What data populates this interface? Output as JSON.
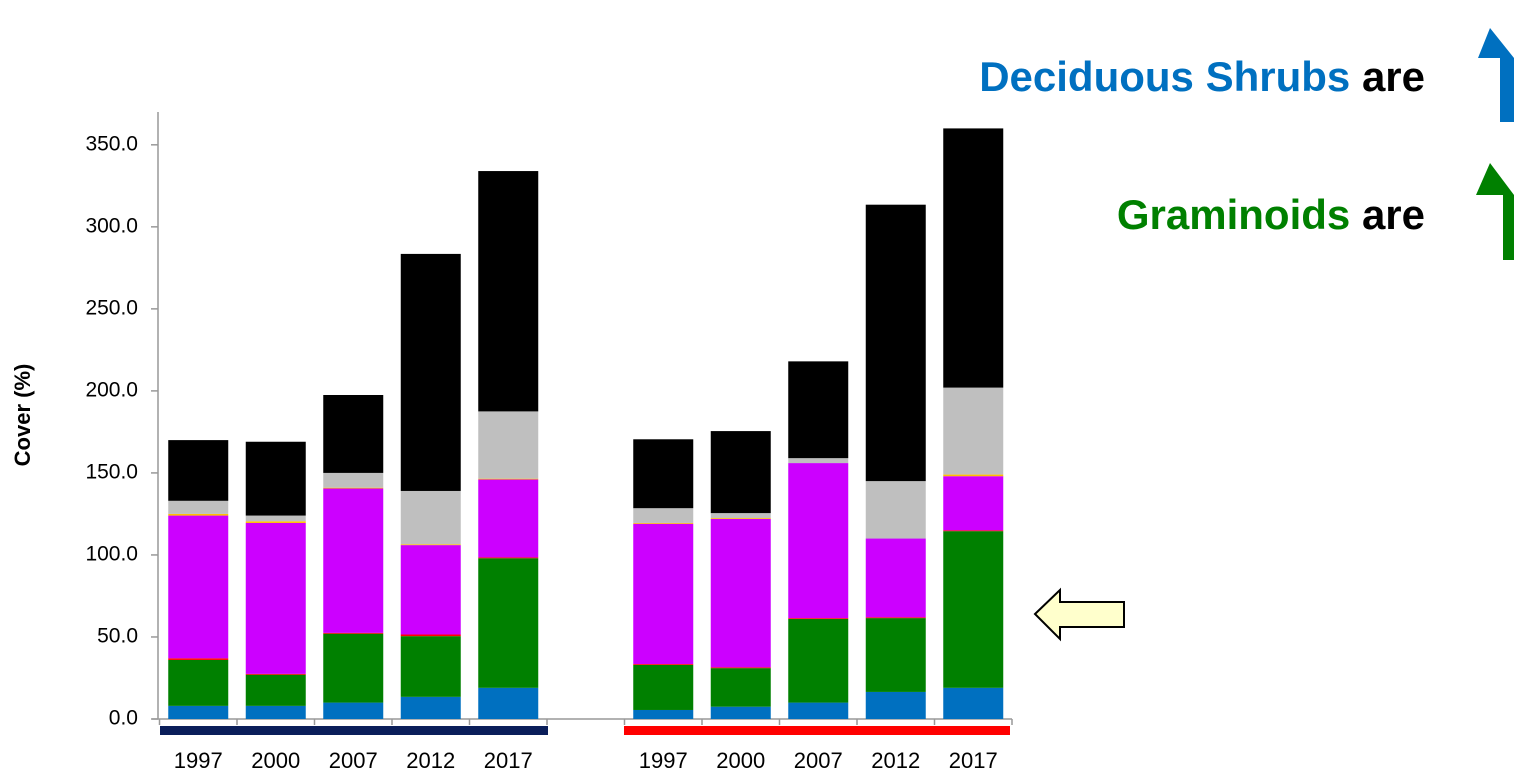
{
  "chart_data": {
    "type": "stacked_bar",
    "y_label": "Cover (%)",
    "categories": [
      "1997",
      "2000",
      "2007",
      "2012",
      "2017",
      null,
      "1997",
      "2000",
      "2007",
      "2012",
      "2017"
    ],
    "series": [
      {
        "color": "#0070c0",
        "values": [
          8,
          8,
          10,
          13.5,
          19,
          null,
          5.5,
          7.5,
          10,
          16.5,
          19
        ]
      },
      {
        "color": "#008000",
        "values": [
          28,
          19,
          42,
          37,
          79,
          null,
          27.5,
          23.5,
          51,
          45,
          95.5
        ]
      },
      {
        "color": "#ff0000",
        "values": [
          1,
          0.5,
          0.5,
          1,
          0.5,
          null,
          0.5,
          0.5,
          0.5,
          0.5,
          0.5
        ]
      },
      {
        "color": "#cc00ff",
        "values": [
          87,
          92,
          88,
          54.5,
          47.5,
          null,
          85.5,
          90.5,
          94.5,
          48,
          33
        ]
      },
      {
        "color": "#ffc000",
        "values": [
          1,
          1,
          0.5,
          0.5,
          0.5,
          null,
          0.5,
          0.5,
          0,
          0,
          1
        ]
      },
      {
        "color": "#bfbfbf",
        "values": [
          8,
          3.5,
          9,
          32.5,
          41,
          null,
          9,
          3,
          3,
          35,
          53
        ]
      },
      {
        "color": "#000000",
        "values": [
          37,
          45,
          47.5,
          144.5,
          146.5,
          null,
          42,
          50,
          59,
          168.5,
          158
        ]
      }
    ],
    "ylim": [
      0,
      370
    ],
    "yticks": [
      {
        "value": 0,
        "label": "0.0"
      },
      {
        "value": 50,
        "label": "50.0"
      },
      {
        "value": 100,
        "label": "100.0"
      },
      {
        "value": 150,
        "label": "150.0"
      },
      {
        "value": 200,
        "label": "200.0"
      },
      {
        "value": 250,
        "label": "250.0"
      },
      {
        "value": 300,
        "label": "300.0"
      },
      {
        "value": 350,
        "label": "350.0"
      }
    ],
    "annotations": [
      {
        "text": "Deciduous Shrubs",
        "suffix": "are",
        "color": "#0070c0"
      },
      {
        "text": "Graminoids",
        "suffix": "are",
        "color": "#008000"
      }
    ]
  }
}
